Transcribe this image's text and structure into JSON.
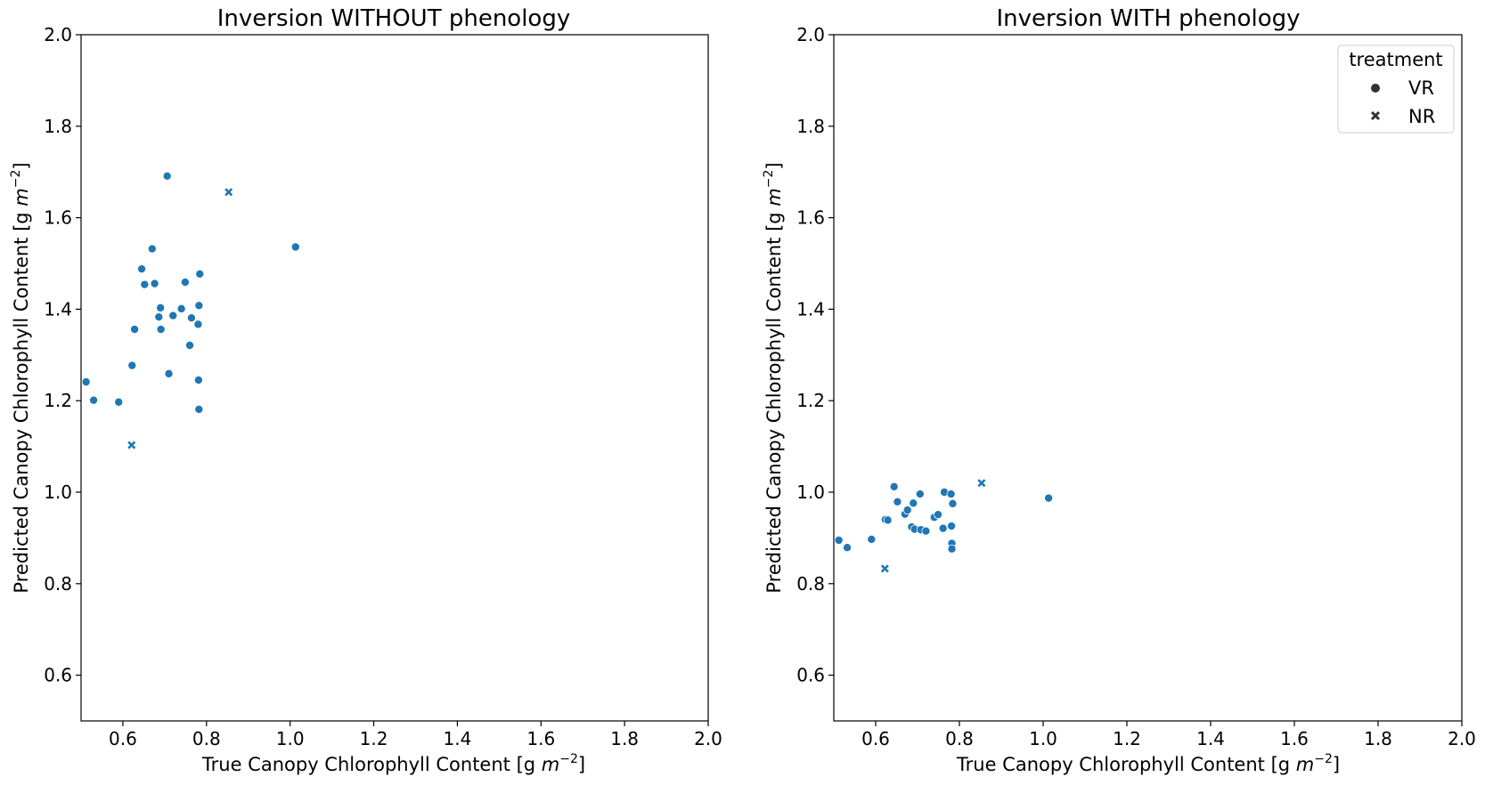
{
  "chart_data": [
    {
      "type": "scatter",
      "title": "Inversion WITHOUT phenology",
      "xlabel_main": "True Canopy Chlorophyll Content [g ",
      "xlabel_unit_var": "m",
      "xlabel_unit_exp": "−2",
      "xlabel_end": "]",
      "ylabel_main": "Predicted Canopy Chlorophyll Content [g ",
      "ylabel_unit_var": "m",
      "ylabel_unit_exp": "−2",
      "ylabel_end": "]",
      "xlim": [
        0.5,
        2.0
      ],
      "ylim": [
        0.5,
        2.0
      ],
      "xticks": [
        "0.6",
        "0.8",
        "1.0",
        "1.2",
        "1.4",
        "1.6",
        "1.8",
        "2.0"
      ],
      "yticks": [
        "0.6",
        "0.8",
        "1.0",
        "1.2",
        "1.4",
        "1.6",
        "1.8",
        "2.0"
      ],
      "grid": false,
      "color": "#1f77b4",
      "series": [
        {
          "name": "VR",
          "marker": "circle",
          "points": [
            [
              0.512,
              1.241
            ],
            [
              0.53,
              1.201
            ],
            [
              0.59,
              1.197
            ],
            [
              0.622,
              1.277
            ],
            [
              0.628,
              1.356
            ],
            [
              0.645,
              1.488
            ],
            [
              0.652,
              1.454
            ],
            [
              0.67,
              1.532
            ],
            [
              0.676,
              1.456
            ],
            [
              0.686,
              1.383
            ],
            [
              0.69,
              1.403
            ],
            [
              0.691,
              1.356
            ],
            [
              0.706,
              1.691
            ],
            [
              0.71,
              1.259
            ],
            [
              0.72,
              1.386
            ],
            [
              0.74,
              1.401
            ],
            [
              0.749,
              1.459
            ],
            [
              0.76,
              1.321
            ],
            [
              0.764,
              1.381
            ],
            [
              0.78,
              1.367
            ],
            [
              0.781,
              1.245
            ],
            [
              0.782,
              1.181
            ],
            [
              0.782,
              1.408
            ],
            [
              0.784,
              1.477
            ],
            [
              1.013,
              1.536
            ]
          ]
        },
        {
          "name": "NR",
          "marker": "x",
          "points": [
            [
              0.621,
              1.103
            ],
            [
              0.853,
              1.656
            ]
          ]
        }
      ]
    },
    {
      "type": "scatter",
      "title": "Inversion WITH phenology",
      "xlabel_main": "True Canopy Chlorophyll Content [g ",
      "xlabel_unit_var": "m",
      "xlabel_unit_exp": "−2",
      "xlabel_end": "]",
      "ylabel_main": "Predicted Canopy Chlorophyll Content [g ",
      "ylabel_unit_var": "m",
      "ylabel_unit_exp": "−2",
      "ylabel_end": "]",
      "xlim": [
        0.5,
        2.0
      ],
      "ylim": [
        0.5,
        2.0
      ],
      "xticks": [
        "0.6",
        "0.8",
        "1.0",
        "1.2",
        "1.4",
        "1.6",
        "1.8",
        "2.0"
      ],
      "yticks": [
        "0.6",
        "0.8",
        "1.0",
        "1.2",
        "1.4",
        "1.6",
        "1.8",
        "2.0"
      ],
      "grid": false,
      "color": "#1f77b4",
      "legend": {
        "title": "treatment",
        "position": "top-right",
        "entries": [
          {
            "label": "VR",
            "marker": "circle"
          },
          {
            "label": "NR",
            "marker": "x"
          }
        ]
      },
      "series": [
        {
          "name": "VR",
          "marker": "circle",
          "points": [
            [
              0.512,
              0.895
            ],
            [
              0.532,
              0.879
            ],
            [
              0.59,
              0.897
            ],
            [
              0.623,
              0.94
            ],
            [
              0.629,
              0.939
            ],
            [
              0.644,
              1.012
            ],
            [
              0.652,
              0.979
            ],
            [
              0.67,
              0.952
            ],
            [
              0.676,
              0.961
            ],
            [
              0.686,
              0.924
            ],
            [
              0.69,
              0.976
            ],
            [
              0.693,
              0.919
            ],
            [
              0.706,
              0.996
            ],
            [
              0.708,
              0.918
            ],
            [
              0.72,
              0.915
            ],
            [
              0.74,
              0.945
            ],
            [
              0.749,
              0.951
            ],
            [
              0.761,
              0.921
            ],
            [
              0.764,
              1.0
            ],
            [
              0.78,
              0.996
            ],
            [
              0.781,
              0.926
            ],
            [
              0.782,
              0.888
            ],
            [
              0.782,
              0.876
            ],
            [
              0.784,
              0.975
            ],
            [
              1.013,
              0.987
            ]
          ]
        },
        {
          "name": "NR",
          "marker": "x",
          "points": [
            [
              0.622,
              0.833
            ],
            [
              0.853,
              1.02
            ]
          ]
        }
      ]
    }
  ]
}
